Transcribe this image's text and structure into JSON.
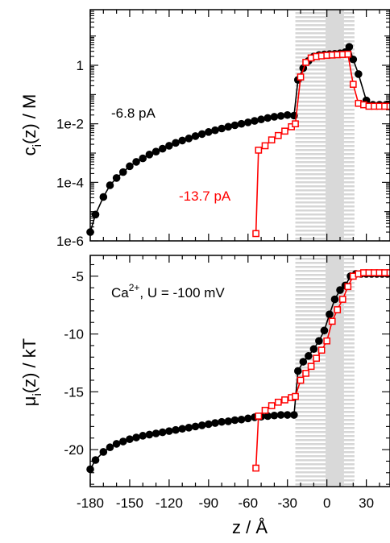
{
  "chart_data": [
    {
      "type": "line",
      "panel": "top",
      "ylabel": "c_i(z) / M",
      "ylabel_main": "c",
      "ylabel_sub": "i",
      "ylabel_rest": "(z) / M",
      "yscale": "log",
      "xlim": [
        -180,
        48
      ],
      "ylim_log10": [
        -6,
        1.9
      ],
      "yticks": [
        {
          "log10": 0,
          "label": "1"
        },
        {
          "log10": -2,
          "label": "1e-2"
        },
        {
          "log10": -4,
          "label": "1e-4"
        },
        {
          "log10": -6,
          "label": "1e-6"
        }
      ],
      "shaded_regions": [
        {
          "x": [
            -24,
            21
          ],
          "style": "horizontal-stripes"
        },
        {
          "x": [
            -1,
            13
          ],
          "style": "solid-gray"
        }
      ],
      "annotations": [
        {
          "text": "-6.8 pA",
          "color": "#000000"
        },
        {
          "text": "-13.7 pA",
          "color": "#ff0000"
        }
      ],
      "series": [
        {
          "color": "#000000",
          "marker": "filled-circle",
          "x": [
            -180,
            -176,
            -170,
            -165,
            -160,
            -155,
            -150,
            -145,
            -140,
            -135,
            -130,
            -125,
            -120,
            -115,
            -110,
            -105,
            -100,
            -95,
            -90,
            -85,
            -80,
            -75,
            -70,
            -65,
            -60,
            -55,
            -50,
            -45,
            -40,
            -35,
            -30,
            -25,
            -22,
            -18,
            -14,
            -10,
            -6,
            -2,
            2,
            6,
            10,
            14,
            17,
            20,
            24,
            30,
            35,
            40,
            45,
            48
          ],
          "y_log10": [
            -5.7,
            -5.1,
            -4.5,
            -4.1,
            -3.85,
            -3.65,
            -3.45,
            -3.3,
            -3.18,
            -3.05,
            -2.95,
            -2.85,
            -2.75,
            -2.65,
            -2.57,
            -2.5,
            -2.42,
            -2.35,
            -2.28,
            -2.22,
            -2.16,
            -2.1,
            -2.05,
            -2.0,
            -1.95,
            -1.9,
            -1.85,
            -1.8,
            -1.76,
            -1.73,
            -1.7,
            -1.72,
            -0.5,
            -0.1,
            0.15,
            0.3,
            0.35,
            0.37,
            0.38,
            0.39,
            0.41,
            0.45,
            0.63,
            0.2,
            -0.3,
            -1.2,
            -1.35,
            -1.35,
            -1.35,
            -1.35
          ]
        },
        {
          "color": "#ff0000",
          "marker": "open-square",
          "x": [
            -54,
            -52,
            -47,
            -42,
            -37,
            -32,
            -27,
            -24,
            -20,
            -16,
            -12,
            -8,
            -4,
            0,
            4,
            8,
            12,
            16,
            20,
            24,
            28,
            32,
            36,
            40,
            44,
            48
          ],
          "y_log10": [
            -5.75,
            -2.9,
            -2.75,
            -2.55,
            -2.4,
            -2.25,
            -2.1,
            -2.0,
            -0.4,
            0.1,
            0.25,
            0.3,
            0.32,
            0.34,
            0.35,
            0.36,
            0.37,
            0.38,
            -0.65,
            -1.3,
            -1.35,
            -1.4,
            -1.4,
            -1.4,
            -1.4,
            -1.4
          ]
        }
      ]
    },
    {
      "type": "line",
      "panel": "bottom",
      "xlabel": "z / Å",
      "ylabel": "μ_i(z) / kT",
      "ylabel_main": "μ",
      "ylabel_sub": "i",
      "ylabel_rest": "(z) / kT",
      "xlim": [
        -180,
        48
      ],
      "ylim": [
        -23.2,
        -3.2
      ],
      "xticks": [
        -180,
        -150,
        -120,
        -90,
        -60,
        -30,
        0,
        30
      ],
      "yticks": [
        -5,
        -10,
        -15,
        -20
      ],
      "shaded_regions": [
        {
          "x": [
            -24,
            21
          ],
          "style": "horizontal-stripes"
        },
        {
          "x": [
            -1,
            13
          ],
          "style": "solid-gray"
        }
      ],
      "annotation": {
        "prefix": "Ca",
        "superscript": "2+",
        "suffix": ", U = -100 mV"
      },
      "series": [
        {
          "color": "#000000",
          "marker": "filled-circle",
          "x": [
            -180,
            -176,
            -170,
            -165,
            -160,
            -155,
            -150,
            -145,
            -140,
            -135,
            -130,
            -125,
            -120,
            -115,
            -110,
            -105,
            -100,
            -95,
            -90,
            -85,
            -80,
            -75,
            -70,
            -65,
            -60,
            -55,
            -50,
            -45,
            -40,
            -35,
            -30,
            -25,
            -22,
            -18,
            -14,
            -10,
            -6,
            -2,
            2,
            6,
            10,
            14,
            18,
            22,
            26,
            30,
            34,
            38,
            42,
            46
          ],
          "y": [
            -21.7,
            -20.9,
            -20.2,
            -19.8,
            -19.5,
            -19.3,
            -19.1,
            -18.95,
            -18.8,
            -18.7,
            -18.6,
            -18.5,
            -18.4,
            -18.3,
            -18.2,
            -18.1,
            -18.0,
            -17.9,
            -17.8,
            -17.7,
            -17.6,
            -17.55,
            -17.45,
            -17.4,
            -17.3,
            -17.2,
            -17.15,
            -17.1,
            -17.05,
            -17.0,
            -17.0,
            -17.0,
            -13.2,
            -12.4,
            -11.9,
            -11.3,
            -10.6,
            -9.7,
            -8.3,
            -7.0,
            -6.2,
            -5.8,
            -5.0,
            -4.8,
            -4.8,
            -4.8,
            -4.8,
            -4.8,
            -4.8,
            -4.8
          ]
        },
        {
          "color": "#ff0000",
          "marker": "open-square",
          "x": [
            -54,
            -52,
            -47,
            -42,
            -37,
            -32,
            -27,
            -24,
            -20,
            -16,
            -12,
            -8,
            -4,
            0,
            4,
            8,
            12,
            16,
            20,
            24,
            28,
            32,
            36,
            40,
            44,
            48
          ],
          "y": [
            -21.6,
            -17.1,
            -16.6,
            -16.2,
            -15.9,
            -15.7,
            -15.5,
            -15.4,
            -14.0,
            -13.4,
            -12.8,
            -12.1,
            -11.4,
            -10.6,
            -8.9,
            -7.9,
            -7.0,
            -5.9,
            -5.0,
            -4.8,
            -4.7,
            -4.7,
            -4.7,
            -4.7,
            -4.7,
            -4.7
          ]
        }
      ]
    }
  ]
}
